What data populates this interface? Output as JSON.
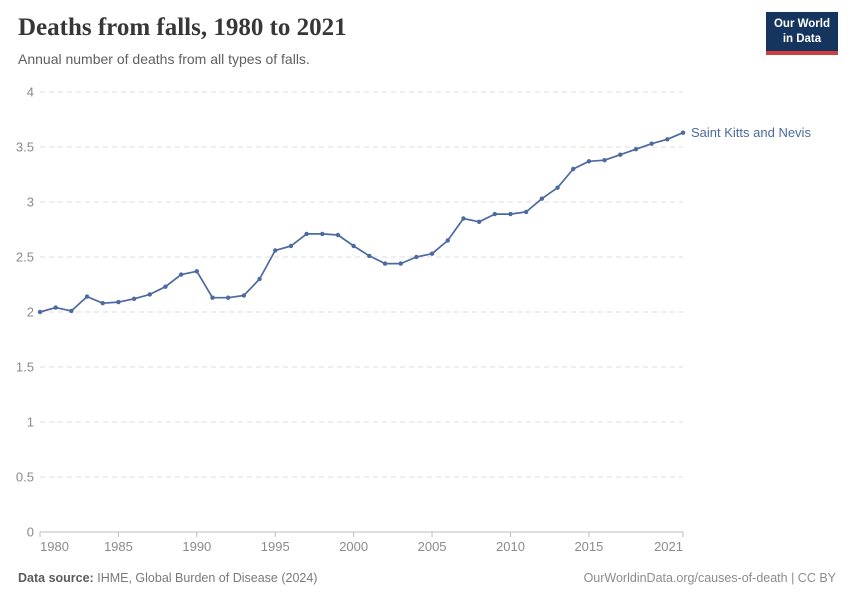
{
  "header": {
    "title": "Deaths from falls, 1980 to 2021",
    "subtitle": "Annual number of deaths from all types of falls."
  },
  "logo": {
    "line1": "Our World",
    "line2": "in Data",
    "bg_color": "#16355e",
    "accent_color": "#d23d3d"
  },
  "chart_data": {
    "type": "line",
    "title": "Deaths from falls, 1980 to 2021",
    "xlabel": "",
    "ylabel": "",
    "xlim": [
      1980,
      2021
    ],
    "ylim": [
      0,
      4
    ],
    "x_ticks": [
      1980,
      1985,
      1990,
      1995,
      2000,
      2005,
      2010,
      2015,
      2021
    ],
    "y_ticks": [
      0,
      0.5,
      1,
      1.5,
      2,
      2.5,
      3,
      3.5,
      4
    ],
    "grid": "horizontal-dashed",
    "legend_position": "end-of-line-label",
    "x": [
      1980,
      1981,
      1982,
      1983,
      1984,
      1985,
      1986,
      1987,
      1988,
      1989,
      1990,
      1991,
      1992,
      1993,
      1994,
      1995,
      1996,
      1997,
      1998,
      1999,
      2000,
      2001,
      2002,
      2003,
      2004,
      2005,
      2006,
      2007,
      2008,
      2009,
      2010,
      2011,
      2012,
      2013,
      2014,
      2015,
      2016,
      2017,
      2018,
      2019,
      2020,
      2021
    ],
    "series": [
      {
        "name": "Saint Kitts and Nevis",
        "color": "#4c6aa0",
        "values": [
          2.0,
          2.04,
          2.01,
          2.14,
          2.08,
          2.09,
          2.12,
          2.16,
          2.23,
          2.34,
          2.37,
          2.13,
          2.13,
          2.15,
          2.3,
          2.56,
          2.6,
          2.71,
          2.71,
          2.7,
          2.6,
          2.51,
          2.44,
          2.44,
          2.5,
          2.53,
          2.65,
          2.85,
          2.82,
          2.89,
          2.89,
          2.91,
          3.03,
          3.13,
          3.3,
          3.37,
          3.38,
          3.43,
          3.48,
          3.53,
          3.57,
          3.63
        ]
      }
    ]
  },
  "footer": {
    "source_label": "Data source:",
    "source_text": "IHME, Global Burden of Disease (2024)",
    "credit": "OurWorldinData.org/causes-of-death | CC BY"
  }
}
